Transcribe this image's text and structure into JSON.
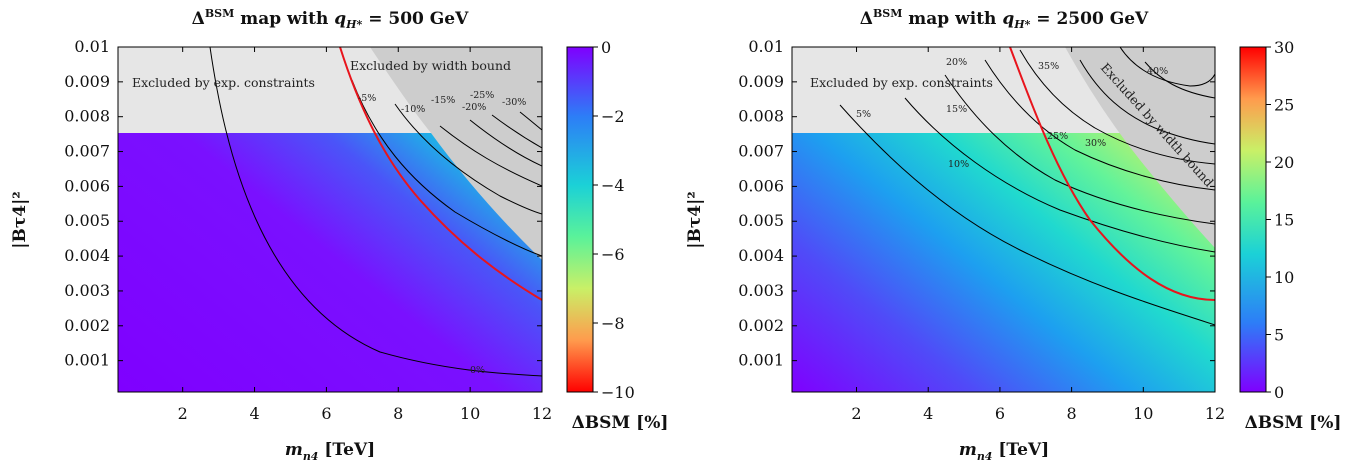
{
  "panels": [
    {
      "title": "ΔBSM map with qH* = 500 GeV",
      "title_main": "Δ",
      "title_sup": "BSM",
      "title_mid": " map with ",
      "title_var": "q",
      "title_varsub": "H*",
      "title_end": " = 500 GeV",
      "colorbar_ticks": [
        "0",
        "−2",
        "−4",
        "−6",
        "−8",
        "−10"
      ],
      "colorbar_label": "ΔBSM [%]",
      "region_label_exp": "Excluded by exp. constraints",
      "region_label_width": "Excluded by width bound",
      "contour_labels": [
        "-5%",
        "-10%",
        "-15%",
        "-20%",
        "-25%",
        "-30%",
        "0%"
      ]
    },
    {
      "title": "ΔBSM map with qH* = 2500 GeV",
      "title_main": "Δ",
      "title_sup": "BSM",
      "title_mid": " map with ",
      "title_var": "q",
      "title_varsub": "H*",
      "title_end": " = 2500 GeV",
      "colorbar_ticks": [
        "0",
        "5",
        "10",
        "15",
        "20",
        "25",
        "30"
      ],
      "colorbar_label": "ΔBSM [%]",
      "region_label_exp": "Excluded by exp. constraints",
      "region_label_width": "Excluded by width bound",
      "contour_labels": [
        "5%",
        "10%",
        "15%",
        "20%",
        "25%",
        "30%",
        "35%",
        "40%"
      ]
    }
  ],
  "axes": {
    "xlabel": "mn4 [TeV]",
    "xlabel_var": "m",
    "xlabel_sub": "n4",
    "xlabel_unit": " [TeV]",
    "ylabel": "|Bτ4|²",
    "xticks": [
      "2",
      "4",
      "6",
      "8",
      "10",
      "12"
    ],
    "yticks": [
      "0.001",
      "0.002",
      "0.003",
      "0.004",
      "0.005",
      "0.006",
      "0.007",
      "0.008",
      "0.009",
      "0.01"
    ]
  },
  "chart_data": [
    {
      "type": "heatmap",
      "title": "ΔBSM map with qH* = 500 GeV",
      "xlabel": "mn4 [TeV]",
      "ylabel": "|Bτ4|²",
      "xlim": [
        0.2,
        12
      ],
      "ylim": [
        0.0001,
        0.01
      ],
      "colorbar": {
        "label": "ΔBSM [%]",
        "range": [
          -10,
          0
        ],
        "colormap": "rainbow"
      },
      "excluded_exp_above_y": 0.0075,
      "contour_levels_percent": [
        0,
        -5,
        -10,
        -15,
        -20,
        -25,
        -30
      ],
      "red_curve_points": [
        [
          6.5,
          0.01
        ],
        [
          7.2,
          0.0078
        ],
        [
          8.0,
          0.0063
        ],
        [
          9.0,
          0.0051
        ],
        [
          10.0,
          0.0042
        ],
        [
          11.0,
          0.0034
        ],
        [
          12.0,
          0.0027
        ]
      ]
    },
    {
      "type": "heatmap",
      "title": "ΔBSM map with qH* = 2500 GeV",
      "xlabel": "mn4 [TeV]",
      "ylabel": "|Bτ4|²",
      "xlim": [
        0.2,
        12
      ],
      "ylim": [
        0.0001,
        0.01
      ],
      "colorbar": {
        "label": "ΔBSM [%]",
        "range": [
          0,
          30
        ],
        "colormap": "rainbow"
      },
      "excluded_exp_above_y": 0.0075,
      "contour_levels_percent": [
        5,
        10,
        15,
        20,
        25,
        30,
        35,
        40
      ],
      "red_curve_points": [
        [
          6.3,
          0.01
        ],
        [
          7.0,
          0.0082
        ],
        [
          8.0,
          0.0062
        ],
        [
          9.0,
          0.0049
        ],
        [
          10.0,
          0.004
        ],
        [
          11.0,
          0.0033
        ],
        [
          12.0,
          0.0027
        ]
      ]
    }
  ]
}
